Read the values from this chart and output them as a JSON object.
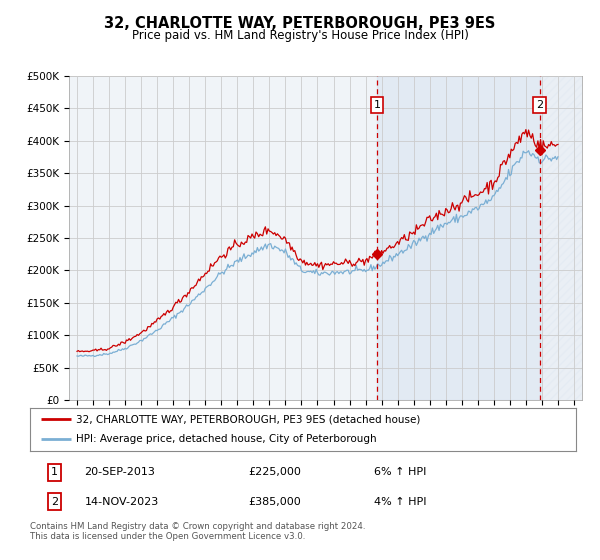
{
  "title": "32, CHARLOTTE WAY, PETERBOROUGH, PE3 9ES",
  "subtitle": "Price paid vs. HM Land Registry's House Price Index (HPI)",
  "legend_line1": "32, CHARLOTTE WAY, PETERBOROUGH, PE3 9ES (detached house)",
  "legend_line2": "HPI: Average price, detached house, City of Peterborough",
  "sale1_date": "20-SEP-2013",
  "sale1_price": "£225,000",
  "sale1_hpi": "6% ↑ HPI",
  "sale1_year": 2013.72,
  "sale1_value": 225000,
  "sale2_date": "14-NOV-2023",
  "sale2_price": "£385,000",
  "sale2_hpi": "4% ↑ HPI",
  "sale2_year": 2023.87,
  "sale2_value": 385000,
  "ylim": [
    0,
    500000
  ],
  "xlim": [
    1994.5,
    2026.5
  ],
  "yticks": [
    0,
    50000,
    100000,
    150000,
    200000,
    250000,
    300000,
    350000,
    400000,
    450000,
    500000
  ],
  "ytick_labels": [
    "£0",
    "£50K",
    "£100K",
    "£150K",
    "£200K",
    "£250K",
    "£300K",
    "£350K",
    "£400K",
    "£450K",
    "£500K"
  ],
  "xticks": [
    1995,
    1996,
    1997,
    1998,
    1999,
    2000,
    2001,
    2002,
    2003,
    2004,
    2005,
    2006,
    2007,
    2008,
    2009,
    2010,
    2011,
    2012,
    2013,
    2014,
    2015,
    2016,
    2017,
    2018,
    2019,
    2020,
    2021,
    2022,
    2023,
    2024,
    2025,
    2026
  ],
  "red_line_color": "#cc0000",
  "blue_line_color": "#7bafd4",
  "vline_color": "#cc0000",
  "grid_color": "#cccccc",
  "bg_color": "#ffffff",
  "plot_bg_color": "#f0f4f8",
  "shade_color": "#c8d8ea",
  "footer": "Contains HM Land Registry data © Crown copyright and database right 2024.\nThis data is licensed under the Open Government Licence v3.0."
}
